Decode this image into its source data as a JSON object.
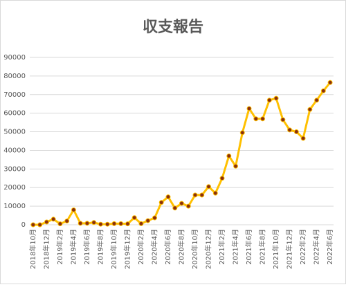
{
  "chart_data": {
    "type": "line",
    "title": "収支報告",
    "categories": [
      "2018年10月",
      null,
      "2018年12月",
      null,
      "2019年2月",
      null,
      "2019年4月",
      null,
      "2019年6月",
      null,
      "2019年8月",
      null,
      "2019年10月",
      null,
      "2019年12月",
      null,
      "2020年2月",
      null,
      "2020年4月",
      null,
      "2020年6月",
      null,
      "2020年8月",
      null,
      "2020年10月",
      null,
      "2020年12月",
      null,
      "2021年2月",
      null,
      "2021年4月",
      null,
      "2021年6月",
      null,
      "2021年8月",
      null,
      "2021年10月",
      null,
      "2021年12月",
      null,
      "2022年2月",
      null,
      "2022年4月",
      null,
      "2022年6月"
    ],
    "series": [
      {
        "color": "#ffc000",
        "marker_color": "#8b2f0b",
        "values": [
          0,
          0,
          1500,
          3000,
          500,
          2000,
          8000,
          800,
          800,
          1200,
          300,
          300,
          600,
          600,
          500,
          3800,
          600,
          2200,
          3700,
          12000,
          15000,
          9000,
          11500,
          10000,
          16000,
          16000,
          20500,
          17000,
          25000,
          37000,
          31500,
          49500,
          62500,
          57000,
          57000,
          67000,
          68000,
          56500,
          51000,
          50000,
          46500,
          62000,
          67000,
          72000,
          76500
        ]
      }
    ],
    "ylim": [
      0,
      90000
    ],
    "yticks": [
      0,
      10000,
      20000,
      30000,
      40000,
      50000,
      60000,
      70000,
      80000,
      90000
    ],
    "grid": true
  }
}
